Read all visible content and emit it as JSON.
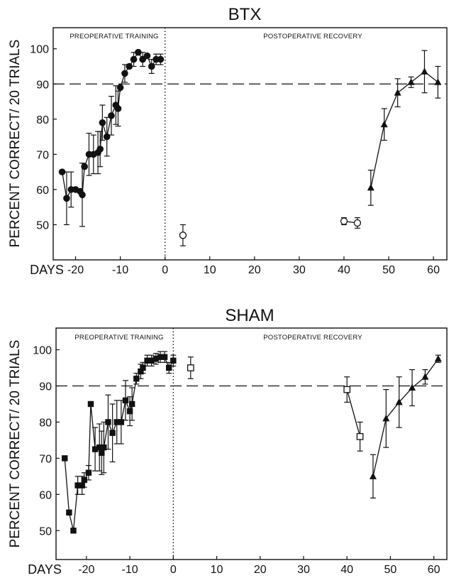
{
  "chart_data": [
    {
      "type": "scatter",
      "title": "BTX",
      "ylabel": "PERCENT CORRECT/ 20 TRIALS",
      "xlabel": "DAYS",
      "xlim": [
        -25,
        63
      ],
      "ylim": [
        40,
        106
      ],
      "x_ticks": [
        -20,
        -10,
        0,
        10,
        20,
        30,
        40,
        50,
        60
      ],
      "y_ticks": [
        50,
        60,
        70,
        80,
        90,
        100
      ],
      "reference_line": 90,
      "surgery_day": 0,
      "regions": [
        "PREOPERATIVE TRAINING",
        "POSTOPERATIVE RECOVERY"
      ],
      "series": [
        {
          "marker": "filled-circle",
          "connected": true,
          "points": [
            {
              "x": -23,
              "y": 65,
              "err": 0
            },
            {
              "x": -22,
              "y": 57.5,
              "err": 7.5
            },
            {
              "x": -21,
              "y": 60,
              "err": 5
            },
            {
              "x": -20,
              "y": 60,
              "err": 0
            },
            {
              "x": -19,
              "y": 59.5,
              "err": 0
            },
            {
              "x": -18.5,
              "y": 58.5,
              "err": 9
            },
            {
              "x": -18,
              "y": 66.5,
              "err": 0
            },
            {
              "x": -17,
              "y": 70,
              "err": 6
            },
            {
              "x": -16,
              "y": 70,
              "err": 5.5
            },
            {
              "x": -15,
              "y": 70.5,
              "err": 6
            },
            {
              "x": -14.5,
              "y": 71.5,
              "err": 5
            },
            {
              "x": -14,
              "y": 79,
              "err": 5
            },
            {
              "x": -13,
              "y": 75,
              "err": 5.5
            },
            {
              "x": -12,
              "y": 81,
              "err": 5.5
            },
            {
              "x": -11,
              "y": 84,
              "err": 5.5
            },
            {
              "x": -10.5,
              "y": 83,
              "err": 5
            },
            {
              "x": -10,
              "y": 89,
              "err": 0
            },
            {
              "x": -9,
              "y": 93,
              "err": 2.5
            },
            {
              "x": -8,
              "y": 95,
              "err": 0
            },
            {
              "x": -7,
              "y": 97,
              "err": 2
            },
            {
              "x": -6,
              "y": 99,
              "err": 0
            },
            {
              "x": -5,
              "y": 97,
              "err": 2
            },
            {
              "x": -4,
              "y": 98,
              "err": 0
            },
            {
              "x": -3,
              "y": 95,
              "err": 2
            },
            {
              "x": -2,
              "y": 97,
              "err": 1.5
            },
            {
              "x": -1,
              "y": 97,
              "err": 1.5
            }
          ]
        },
        {
          "marker": "open-circle",
          "connected": true,
          "points": [
            {
              "x": 4,
              "y": 47,
              "err": 3
            }
          ]
        },
        {
          "marker": "open-circle",
          "connected": true,
          "points": [
            {
              "x": 40,
              "y": 51,
              "err": 1
            },
            {
              "x": 43,
              "y": 50.5,
              "err": 1.5
            }
          ]
        },
        {
          "marker": "filled-triangle",
          "connected": true,
          "points": [
            {
              "x": 46,
              "y": 60.5,
              "err": 5
            },
            {
              "x": 49,
              "y": 78.5,
              "err": 4.5
            },
            {
              "x": 52,
              "y": 87.5,
              "err": 4
            },
            {
              "x": 55,
              "y": 90.5,
              "err": 1.5
            },
            {
              "x": 58,
              "y": 93.5,
              "err": 6
            },
            {
              "x": 61,
              "y": 90.5,
              "err": 4.5
            }
          ]
        }
      ]
    },
    {
      "type": "scatter",
      "title": "SHAM",
      "ylabel": "PERCENT CORRECT/ 20 TRIALS",
      "xlabel": "DAYS",
      "xlim": [
        -27,
        63
      ],
      "ylim": [
        42,
        106
      ],
      "x_ticks": [
        -20,
        -10,
        0,
        10,
        20,
        30,
        40,
        50,
        60
      ],
      "y_ticks": [
        50,
        60,
        70,
        80,
        90,
        100
      ],
      "reference_line": 90,
      "surgery_day": 0,
      "regions": [
        "PREOPERATIVE TRAINING",
        "POSTOPERATIVE RECOVERY"
      ],
      "series": [
        {
          "marker": "filled-square",
          "connected": true,
          "points": [
            {
              "x": -25,
              "y": 70,
              "err": 0
            },
            {
              "x": -24,
              "y": 55,
              "err": 0
            },
            {
              "x": -23,
              "y": 50,
              "err": 0
            },
            {
              "x": -22,
              "y": 62.5,
              "err": 2.5
            },
            {
              "x": -21,
              "y": 62.5,
              "err": 2.5
            },
            {
              "x": -20.5,
              "y": 64,
              "err": 2
            },
            {
              "x": -19.5,
              "y": 66,
              "err": 2
            },
            {
              "x": -19,
              "y": 85,
              "err": 0
            },
            {
              "x": -18,
              "y": 72.5,
              "err": 6
            },
            {
              "x": -17,
              "y": 73,
              "err": 6.5
            },
            {
              "x": -16.5,
              "y": 71.5,
              "err": 6
            },
            {
              "x": -16,
              "y": 73,
              "err": 7
            },
            {
              "x": -15,
              "y": 80,
              "err": 7.5
            },
            {
              "x": -14,
              "y": 77,
              "err": 8
            },
            {
              "x": -13,
              "y": 80,
              "err": 6
            },
            {
              "x": -12,
              "y": 80,
              "err": 6
            },
            {
              "x": -11,
              "y": 86,
              "err": 5.5
            },
            {
              "x": -10,
              "y": 83,
              "err": 4
            },
            {
              "x": -9.5,
              "y": 85,
              "err": 4.5
            },
            {
              "x": -8.5,
              "y": 92,
              "err": 1.5
            },
            {
              "x": -7.5,
              "y": 94,
              "err": 2
            },
            {
              "x": -7,
              "y": 95,
              "err": 1.5
            },
            {
              "x": -6,
              "y": 97,
              "err": 1.5
            },
            {
              "x": -5,
              "y": 97,
              "err": 1.5
            },
            {
              "x": -4,
              "y": 97.5,
              "err": 1.5
            },
            {
              "x": -3,
              "y": 98,
              "err": 1.5
            },
            {
              "x": -2,
              "y": 98,
              "err": 1.5
            },
            {
              "x": -1,
              "y": 95,
              "err": 1.5
            },
            {
              "x": 0,
              "y": 97,
              "err": 1.5
            }
          ]
        },
        {
          "marker": "open-square",
          "connected": true,
          "points": [
            {
              "x": 4,
              "y": 95,
              "err": 3
            }
          ]
        },
        {
          "marker": "open-square",
          "connected": true,
          "points": [
            {
              "x": 40,
              "y": 89,
              "err": 3.5
            },
            {
              "x": 43,
              "y": 76,
              "err": 4
            }
          ]
        },
        {
          "marker": "filled-triangle",
          "connected": true,
          "points": [
            {
              "x": 46,
              "y": 65,
              "err": 6
            },
            {
              "x": 49,
              "y": 81,
              "err": 8
            },
            {
              "x": 52,
              "y": 85.5,
              "err": 7
            },
            {
              "x": 55,
              "y": 89.5,
              "err": 5
            },
            {
              "x": 58,
              "y": 92.5,
              "err": 2
            },
            {
              "x": 61,
              "y": 97.5,
              "err": 1
            }
          ]
        }
      ]
    }
  ]
}
